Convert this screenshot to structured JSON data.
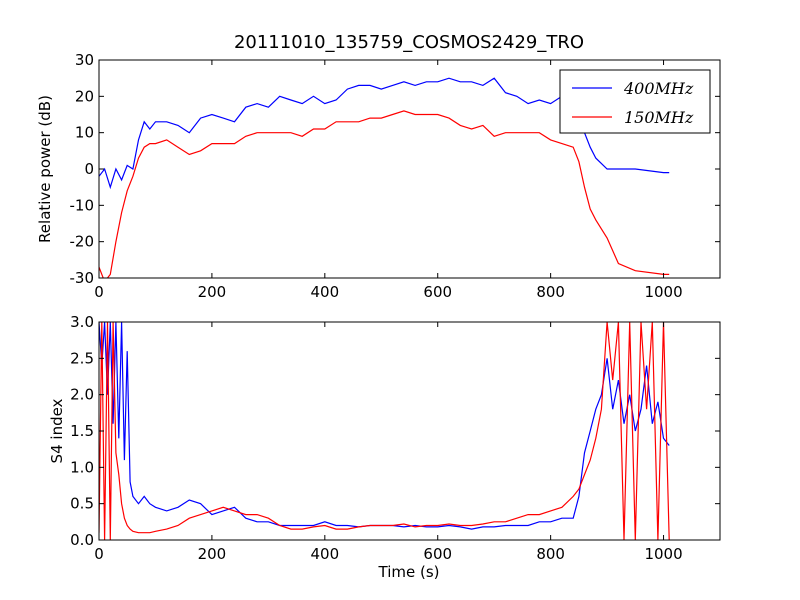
{
  "colors": {
    "blue": "#0000ff",
    "red": "#ff0000"
  },
  "chart_data": [
    {
      "type": "line",
      "title": "20111010_135759_COSMOS2429_TRO",
      "xlabel": "",
      "ylabel": "Relative power (dB)",
      "xlim": [
        0,
        1100
      ],
      "ylim": [
        -30,
        30
      ],
      "xticks": [
        0,
        200,
        400,
        600,
        800,
        1000
      ],
      "yticks": [
        -30,
        -20,
        -10,
        0,
        10,
        20,
        30
      ],
      "legend": {
        "placement": "top-right",
        "entries": [
          "400MHz",
          "150MHz"
        ]
      },
      "series": [
        {
          "name": "400MHz",
          "color": "#0000ff",
          "x": [
            0,
            10,
            20,
            30,
            40,
            50,
            60,
            70,
            80,
            90,
            100,
            120,
            140,
            160,
            180,
            200,
            220,
            240,
            260,
            280,
            300,
            320,
            340,
            360,
            380,
            400,
            420,
            440,
            460,
            480,
            500,
            520,
            540,
            560,
            580,
            600,
            620,
            640,
            660,
            680,
            700,
            720,
            740,
            760,
            780,
            800,
            820,
            840,
            850,
            860,
            870,
            880,
            900,
            950,
            1000,
            1010
          ],
          "y": [
            -2,
            0,
            -5,
            0,
            -3,
            1,
            0,
            8,
            13,
            11,
            13,
            13,
            12,
            10,
            14,
            15,
            14,
            13,
            17,
            18,
            17,
            20,
            19,
            18,
            20,
            18,
            19,
            22,
            23,
            23,
            22,
            23,
            24,
            23,
            24,
            24,
            25,
            24,
            24,
            23,
            25,
            21,
            20,
            18,
            19,
            18,
            20,
            19,
            15,
            10,
            6,
            3,
            0,
            0,
            -1,
            -1
          ]
        },
        {
          "name": "150MHz",
          "color": "#ff0000",
          "x": [
            0,
            10,
            20,
            30,
            40,
            50,
            60,
            70,
            80,
            90,
            100,
            120,
            140,
            160,
            180,
            200,
            220,
            240,
            260,
            280,
            300,
            320,
            340,
            360,
            380,
            400,
            420,
            440,
            460,
            480,
            500,
            520,
            540,
            560,
            580,
            600,
            620,
            640,
            660,
            680,
            700,
            720,
            740,
            760,
            780,
            800,
            820,
            840,
            850,
            860,
            870,
            880,
            900,
            920,
            950,
            1000,
            1010
          ],
          "y": [
            -27,
            -31,
            -29,
            -20,
            -12,
            -6,
            -2,
            3,
            6,
            7,
            7,
            8,
            6,
            4,
            5,
            7,
            7,
            7,
            9,
            10,
            10,
            10,
            10,
            9,
            11,
            11,
            13,
            13,
            13,
            14,
            14,
            15,
            16,
            15,
            15,
            15,
            14,
            12,
            11,
            12,
            9,
            10,
            10,
            10,
            10,
            8,
            7,
            6,
            2,
            -5,
            -11,
            -14,
            -19,
            -26,
            -28,
            -29,
            -29
          ]
        }
      ]
    },
    {
      "type": "line",
      "title": "",
      "xlabel": "Time (s)",
      "ylabel": "S4 index",
      "xlim": [
        0,
        1100
      ],
      "ylim": [
        0,
        3
      ],
      "xticks": [
        0,
        200,
        400,
        600,
        800,
        1000
      ],
      "yticks": [
        0.0,
        0.5,
        1.0,
        1.5,
        2.0,
        2.5,
        3.0
      ],
      "series": [
        {
          "name": "400MHz",
          "color": "#0000ff",
          "x": [
            0,
            5,
            10,
            15,
            20,
            25,
            30,
            35,
            40,
            45,
            50,
            55,
            60,
            70,
            80,
            90,
            100,
            120,
            140,
            160,
            180,
            200,
            220,
            240,
            260,
            280,
            300,
            320,
            340,
            360,
            380,
            400,
            420,
            440,
            460,
            480,
            500,
            520,
            540,
            560,
            580,
            600,
            620,
            640,
            660,
            680,
            700,
            720,
            740,
            760,
            780,
            800,
            820,
            840,
            850,
            860,
            870,
            880,
            890,
            900,
            910,
            920,
            930,
            940,
            950,
            960,
            970,
            980,
            990,
            1000,
            1010
          ],
          "y": [
            3.0,
            2.4,
            3.0,
            2.0,
            3.0,
            1.6,
            3.0,
            1.4,
            3.0,
            1.1,
            2.6,
            0.8,
            0.6,
            0.5,
            0.6,
            0.5,
            0.45,
            0.4,
            0.45,
            0.55,
            0.5,
            0.35,
            0.4,
            0.45,
            0.3,
            0.25,
            0.25,
            0.2,
            0.2,
            0.2,
            0.2,
            0.25,
            0.2,
            0.2,
            0.18,
            0.2,
            0.2,
            0.2,
            0.18,
            0.2,
            0.18,
            0.18,
            0.2,
            0.18,
            0.15,
            0.18,
            0.18,
            0.2,
            0.2,
            0.2,
            0.25,
            0.25,
            0.3,
            0.3,
            0.6,
            1.2,
            1.5,
            1.8,
            2.0,
            2.5,
            1.8,
            2.2,
            1.6,
            2.0,
            1.5,
            1.8,
            2.4,
            1.6,
            1.9,
            1.4,
            1.3
          ]
        },
        {
          "name": "150MHz",
          "color": "#ff0000",
          "x": [
            0,
            5,
            10,
            15,
            20,
            25,
            30,
            35,
            40,
            45,
            50,
            55,
            60,
            70,
            80,
            90,
            100,
            120,
            140,
            160,
            180,
            200,
            220,
            240,
            260,
            280,
            300,
            320,
            340,
            360,
            380,
            400,
            420,
            440,
            460,
            480,
            500,
            520,
            540,
            560,
            580,
            600,
            620,
            640,
            660,
            680,
            700,
            720,
            740,
            760,
            780,
            800,
            820,
            840,
            850,
            860,
            870,
            880,
            890,
            900,
            910,
            920,
            930,
            940,
            950,
            960,
            970,
            980,
            990,
            1000,
            1010
          ],
          "y": [
            0.1,
            3.0,
            0.0,
            3.0,
            0.0,
            3.0,
            1.2,
            0.9,
            0.5,
            0.3,
            0.2,
            0.15,
            0.12,
            0.1,
            0.1,
            0.1,
            0.12,
            0.15,
            0.2,
            0.3,
            0.35,
            0.4,
            0.45,
            0.4,
            0.35,
            0.35,
            0.3,
            0.2,
            0.15,
            0.15,
            0.18,
            0.2,
            0.15,
            0.15,
            0.18,
            0.2,
            0.2,
            0.2,
            0.22,
            0.18,
            0.2,
            0.2,
            0.22,
            0.2,
            0.2,
            0.22,
            0.25,
            0.25,
            0.3,
            0.35,
            0.35,
            0.4,
            0.45,
            0.6,
            0.7,
            0.9,
            1.1,
            1.4,
            1.8,
            3.0,
            2.2,
            3.0,
            0.0,
            3.0,
            0.0,
            3.0,
            1.8,
            3.0,
            0.0,
            3.0,
            0.0
          ]
        }
      ]
    }
  ]
}
